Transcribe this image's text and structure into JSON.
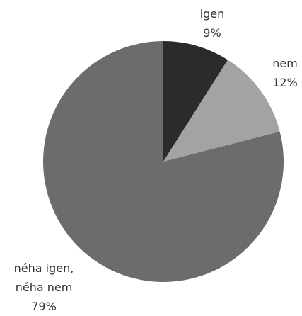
{
  "chart_data": {
    "type": "pie",
    "categories": [
      "igen",
      "nem",
      "néha igen, néha nem"
    ],
    "values": [
      9,
      12,
      79
    ],
    "value_labels": [
      "9%",
      "12%",
      "79%"
    ],
    "colors": [
      "#2b2b2b",
      "#a3a3a3",
      "#6c6c6c"
    ]
  }
}
